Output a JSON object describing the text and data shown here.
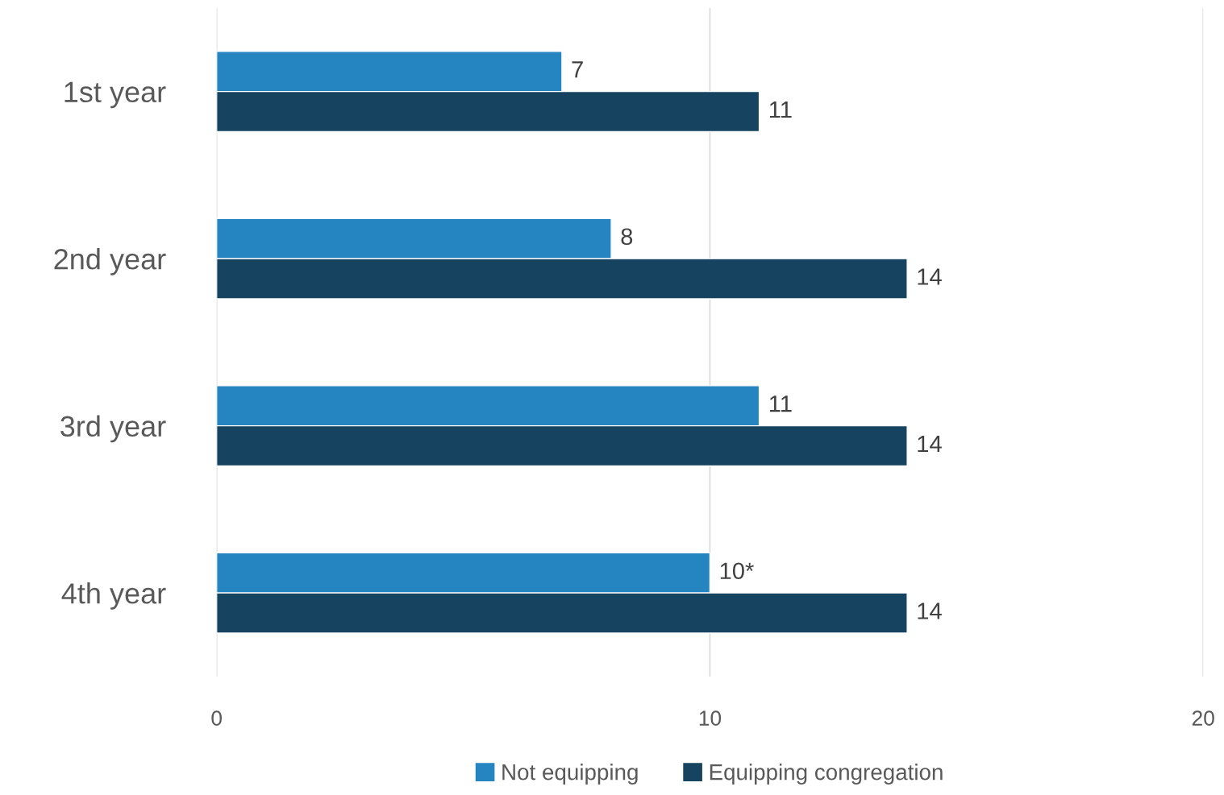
{
  "chart_data": {
    "type": "bar",
    "orientation": "horizontal",
    "categories": [
      "1st year",
      "2nd year",
      "3rd year",
      "4th year"
    ],
    "series": [
      {
        "name": "Not equipping",
        "color": "#2585c0",
        "values": [
          7,
          8,
          11,
          10
        ],
        "value_labels": [
          "7",
          "8",
          "11",
          "10*"
        ]
      },
      {
        "name": "Equipping congregation",
        "color": "#164460",
        "values": [
          11,
          14,
          14,
          14
        ],
        "value_labels": [
          "11",
          "14",
          "14",
          "14"
        ]
      }
    ],
    "xlim": [
      0,
      20
    ],
    "xticks": [
      0,
      10,
      20
    ],
    "grid": "x",
    "legend": "bottom"
  }
}
